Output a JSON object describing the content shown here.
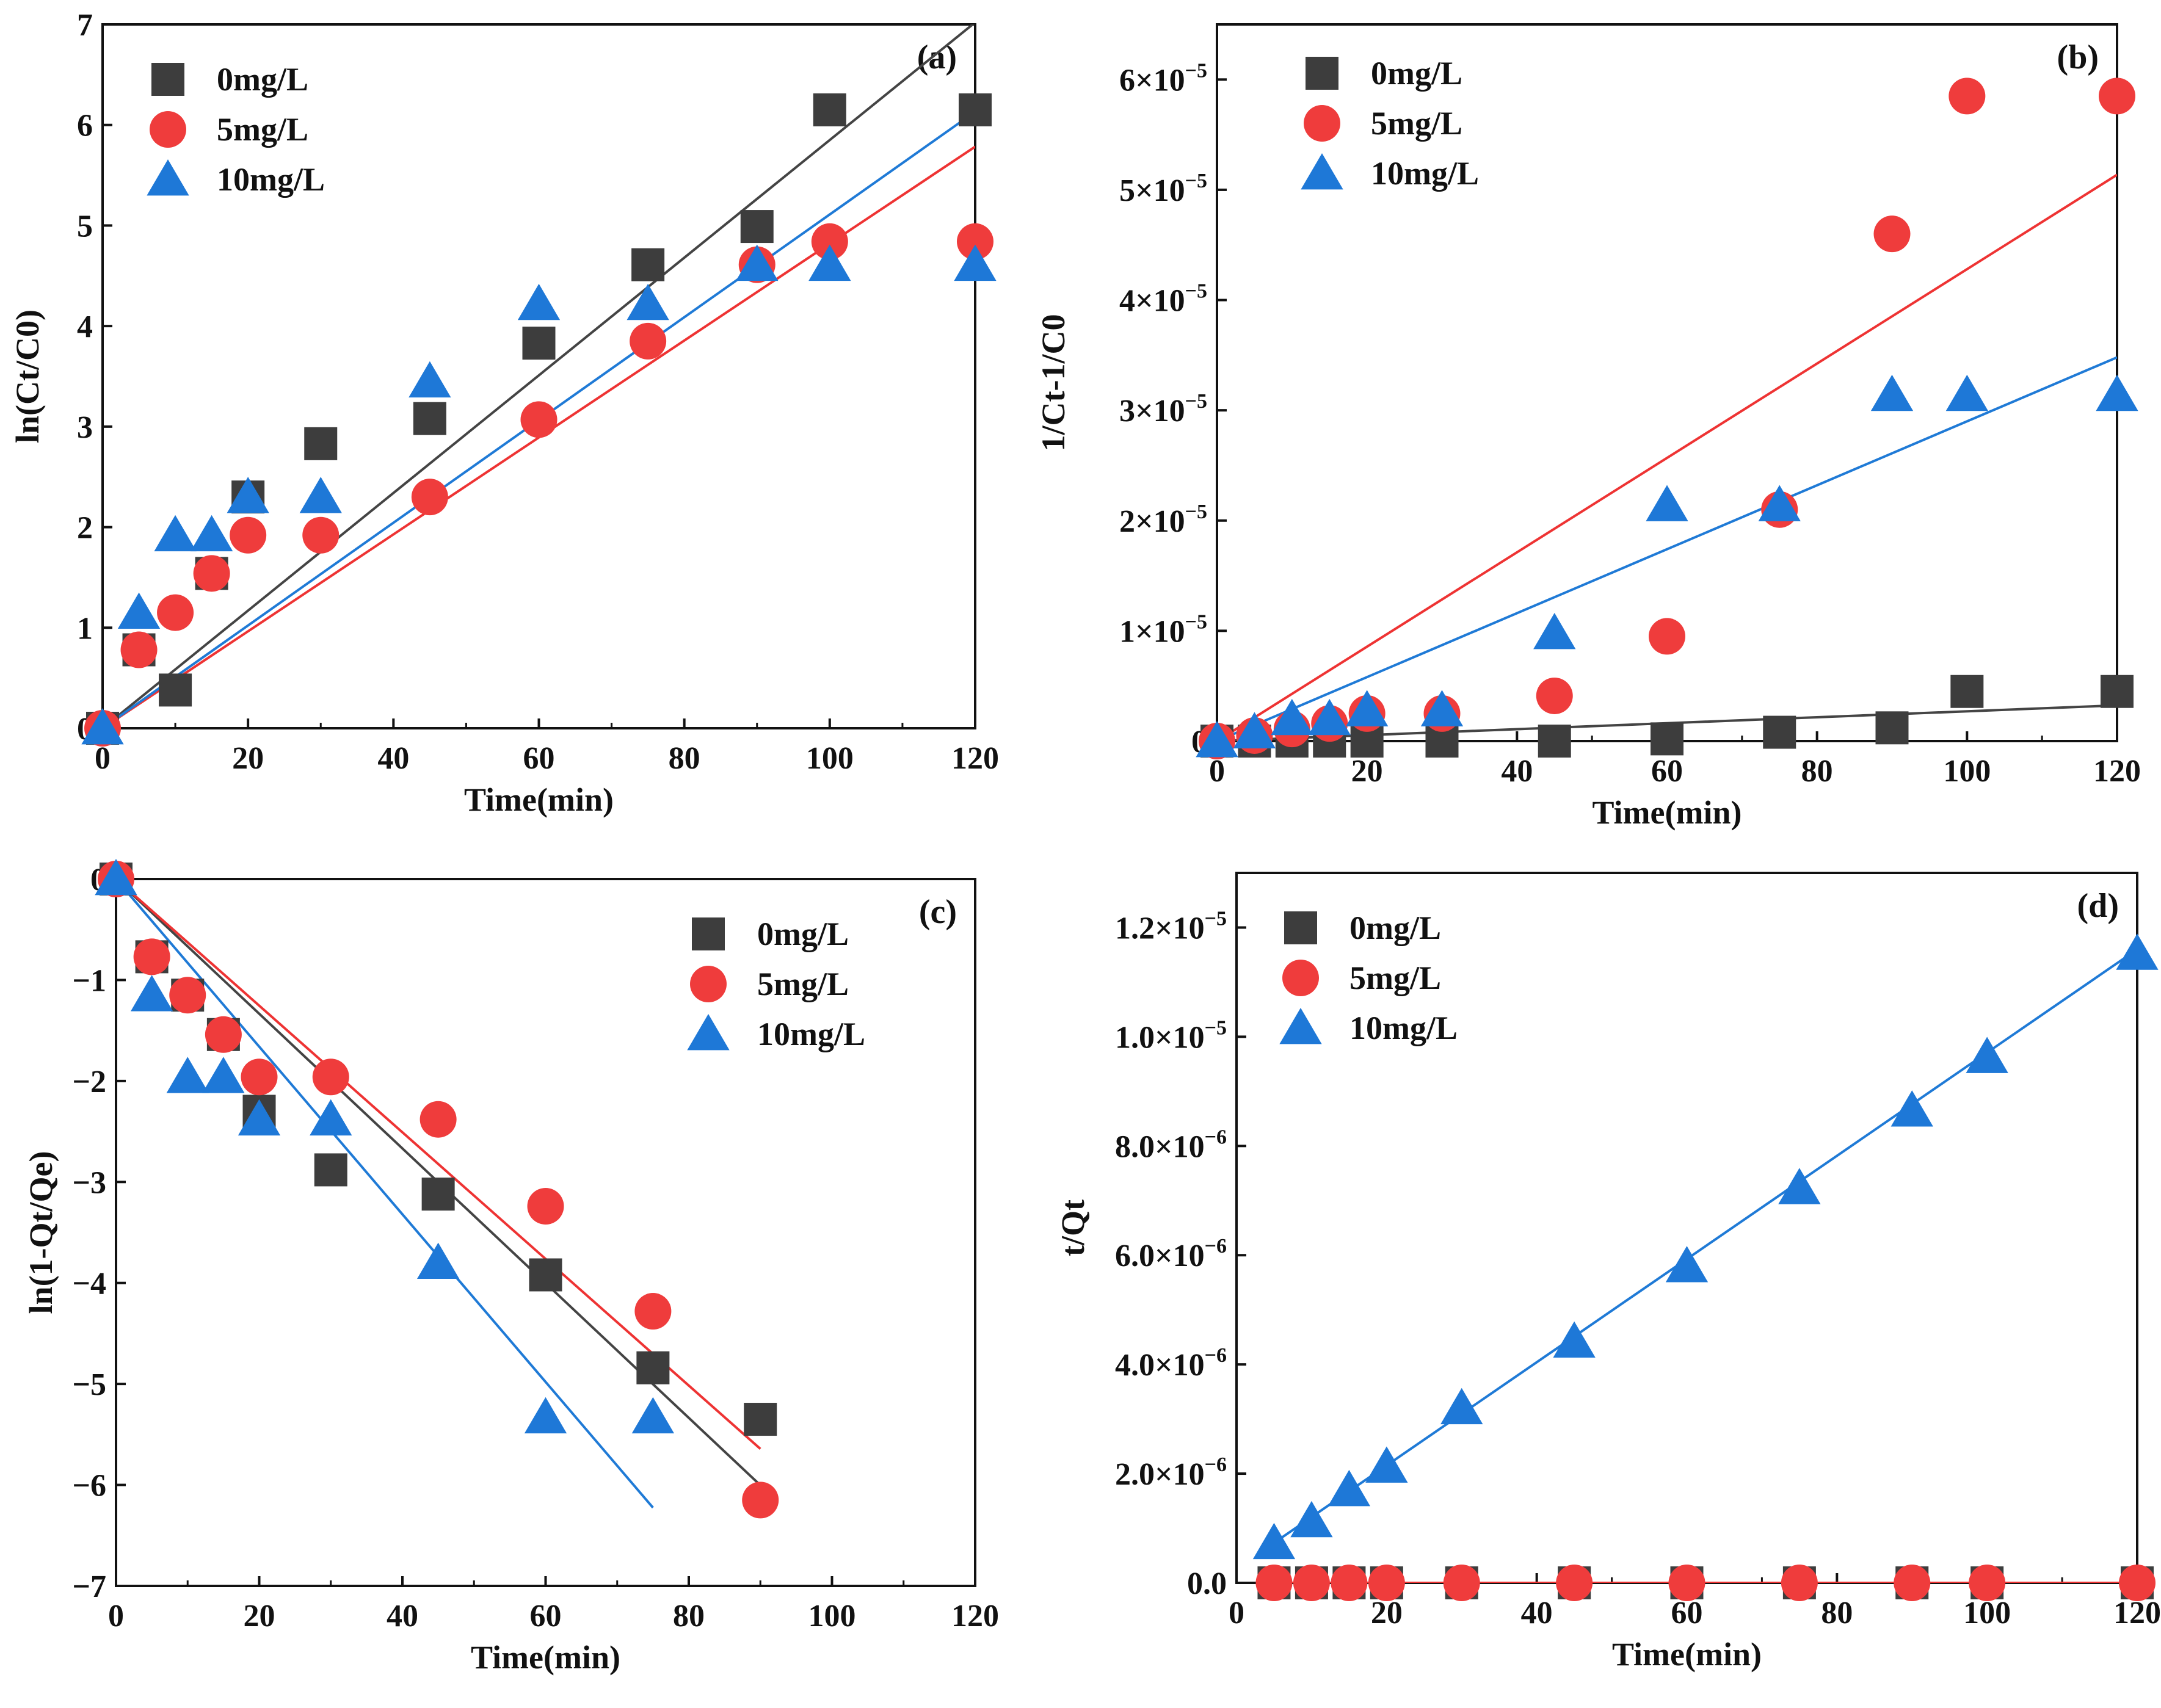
{
  "figure": {
    "series_colors": {
      "0mg/L": "#3d3d3d",
      "5mg/L": "#ef3c3c",
      "10mg/L": "#1e78d7"
    },
    "fit_colors": {
      "0mg/L": "#444444",
      "5mg/L": "#ee3333",
      "10mg/L": "#1f7ad6"
    }
  },
  "chart_data": [
    {
      "type": "scatter",
      "panel": "(a)",
      "xlabel": "Time(min)",
      "ylabel": "ln(Ct/C0)",
      "xlim": [
        0,
        120
      ],
      "ylim": [
        0,
        7
      ],
      "xticks": [
        0,
        20,
        40,
        60,
        80,
        100,
        120
      ],
      "yticks": [
        0,
        1,
        2,
        3,
        4,
        5,
        6,
        7
      ],
      "ytick_format": "plain",
      "legend_position": "top-left",
      "series": [
        {
          "name": "0mg/L",
          "marker": "square",
          "x": [
            0,
            5,
            10,
            15,
            20,
            30,
            45,
            60,
            75,
            90,
            100,
            120
          ],
          "y": [
            0,
            0.78,
            0.38,
            1.54,
            2.3,
            2.83,
            3.08,
            3.83,
            4.61,
            4.99,
            6.15,
            6.15
          ],
          "fit": {
            "slope": 0.0585,
            "intercept": 0,
            "x_range": [
              0,
              120
            ]
          }
        },
        {
          "name": "5mg/L",
          "marker": "circle",
          "x": [
            0,
            5,
            10,
            15,
            20,
            30,
            45,
            60,
            75,
            90,
            100,
            120
          ],
          "y": [
            0,
            0.78,
            1.15,
            1.54,
            1.92,
            1.92,
            2.3,
            3.07,
            3.85,
            4.61,
            4.84,
            4.84
          ],
          "fit": {
            "slope": 0.0482,
            "intercept": 0,
            "x_range": [
              0,
              120
            ]
          }
        },
        {
          "name": "10mg/L",
          "marker": "triangle",
          "x": [
            0,
            5,
            10,
            15,
            20,
            30,
            45,
            60,
            75,
            90,
            100,
            120
          ],
          "y": [
            0,
            1.15,
            1.92,
            1.92,
            2.3,
            2.3,
            3.45,
            4.22,
            4.22,
            4.61,
            4.61,
            4.61
          ],
          "fit": {
            "slope": 0.0511,
            "intercept": 0,
            "x_range": [
              0,
              120
            ]
          }
        }
      ]
    },
    {
      "type": "scatter",
      "panel": "(b)",
      "xlabel": "Time(min)",
      "ylabel": "1/Ct-1/C0",
      "xlim": [
        0,
        120
      ],
      "ylim": [
        0,
        6.5e-05
      ],
      "xticks": [
        0,
        20,
        40,
        60,
        80,
        100,
        120
      ],
      "yticks": [
        0,
        1e-05,
        2e-05,
        3e-05,
        4e-05,
        5e-05,
        6e-05
      ],
      "ytick_format": "sci",
      "legend_position": "top-left",
      "series": [
        {
          "name": "0mg/L",
          "marker": "square",
          "x": [
            0,
            5,
            10,
            15,
            20,
            30,
            45,
            60,
            75,
            90,
            100,
            120
          ],
          "y": [
            0,
            0,
            0,
            0,
            0,
            0,
            0,
            2e-07,
            8e-07,
            1.2e-06,
            4.5e-06,
            4.5e-06
          ],
          "fit": {
            "slope": 2.7e-08,
            "intercept": 0,
            "x_range": [
              0,
              120
            ]
          }
        },
        {
          "name": "5mg/L",
          "marker": "circle",
          "x": [
            0,
            5,
            10,
            15,
            20,
            30,
            45,
            60,
            75,
            90,
            100,
            120
          ],
          "y": [
            0,
            5e-07,
            1.1e-06,
            1.6e-06,
            2.5e-06,
            2.5e-06,
            4.1e-06,
            9.5e-06,
            2.1e-05,
            4.6e-05,
            5.85e-05,
            5.85e-05
          ],
          "fit": {
            "slope": 4.28e-07,
            "intercept": 0,
            "x_range": [
              0,
              120
            ]
          }
        },
        {
          "name": "10mg/L",
          "marker": "triangle",
          "x": [
            0,
            5,
            10,
            15,
            20,
            30,
            45,
            60,
            75,
            90,
            100,
            120
          ],
          "y": [
            0,
            8e-07,
            2e-06,
            2e-06,
            2.8e-06,
            2.8e-06,
            9.8e-06,
            2.14e-05,
            2.14e-05,
            3.14e-05,
            3.14e-05,
            3.14e-05
          ],
          "fit": {
            "slope": 2.9e-07,
            "intercept": 0,
            "x_range": [
              0,
              120
            ]
          }
        }
      ]
    },
    {
      "type": "scatter",
      "panel": "(c)",
      "xlabel": "Time(min)",
      "ylabel": "ln(1-Qt/Qe)",
      "xlim": [
        0,
        120
      ],
      "ylim": [
        -7,
        0
      ],
      "xticks": [
        0,
        20,
        40,
        60,
        80,
        100,
        120
      ],
      "yticks": [
        0,
        -1,
        -2,
        -3,
        -4,
        -5,
        -6,
        -7
      ],
      "ytick_format": "minus",
      "legend_position": "top-right",
      "series": [
        {
          "name": "0mg/L",
          "marker": "square",
          "x": [
            0,
            5,
            10,
            15,
            20,
            30,
            45,
            60,
            75,
            90
          ],
          "y": [
            0,
            -0.77,
            -1.15,
            -1.54,
            -2.3,
            -2.88,
            -3.12,
            -3.92,
            -4.84,
            -5.35
          ],
          "fit": {
            "slope": -0.0667,
            "intercept": 0,
            "x_range": [
              0,
              90
            ]
          }
        },
        {
          "name": "5mg/L",
          "marker": "circle",
          "x": [
            0,
            5,
            10,
            15,
            20,
            30,
            45,
            60,
            75,
            90
          ],
          "y": [
            0,
            -0.77,
            -1.15,
            -1.54,
            -1.96,
            -1.96,
            -2.38,
            -3.24,
            -4.28,
            -6.15
          ],
          "fit": {
            "slope": -0.0627,
            "intercept": 0,
            "x_range": [
              0,
              90
            ]
          }
        },
        {
          "name": "10mg/L",
          "marker": "triangle",
          "x": [
            0,
            5,
            10,
            15,
            20,
            30,
            45,
            60,
            75
          ],
          "y": [
            0,
            -1.15,
            -1.96,
            -1.96,
            -2.38,
            -2.38,
            -3.8,
            -5.33,
            -5.33
          ],
          "fit": {
            "slope": -0.083,
            "intercept": 0,
            "x_range": [
              0,
              75
            ]
          }
        }
      ]
    },
    {
      "type": "scatter",
      "panel": "(d)",
      "xlabel": "Time(min)",
      "ylabel": "t/Qt",
      "xlim": [
        0,
        120
      ],
      "ylim": [
        0,
        1.3e-05
      ],
      "xticks": [
        0,
        20,
        40,
        60,
        80,
        100,
        120
      ],
      "yticks": [
        0,
        2e-06,
        4e-06,
        6e-06,
        8e-06,
        1e-05,
        1.2e-05
      ],
      "ytick_format": "sci1",
      "legend_position": "top-left",
      "series": [
        {
          "name": "0mg/L",
          "marker": "square",
          "x": [
            5,
            10,
            15,
            20,
            30,
            45,
            60,
            75,
            90,
            100,
            120
          ],
          "y": [
            0,
            0,
            0,
            0,
            0,
            0,
            0,
            0,
            0,
            0,
            0
          ],
          "fit": {
            "slope": 0,
            "intercept": 0,
            "x_range": [
              5,
              120
            ]
          }
        },
        {
          "name": "5mg/L",
          "marker": "circle",
          "x": [
            5,
            10,
            15,
            20,
            30,
            45,
            60,
            75,
            90,
            100,
            120
          ],
          "y": [
            0,
            0,
            0,
            0,
            0,
            0,
            0,
            0,
            0,
            0,
            0
          ],
          "fit": {
            "slope": 0,
            "intercept": 0,
            "x_range": [
              5,
              120
            ]
          }
        },
        {
          "name": "10mg/L",
          "marker": "triangle",
          "x": [
            5,
            10,
            15,
            20,
            30,
            45,
            60,
            75,
            90,
            100,
            120
          ],
          "y": [
            7.3e-07,
            1.13e-06,
            1.7e-06,
            2.13e-06,
            3.2e-06,
            4.42e-06,
            5.8e-06,
            7.23e-06,
            8.65e-06,
            9.63e-06,
            1.152e-05
          ],
          "fit": {
            "slope": 9.45e-08,
            "intercept": 2.6e-07,
            "x_range": [
              5,
              120
            ]
          }
        }
      ]
    }
  ]
}
